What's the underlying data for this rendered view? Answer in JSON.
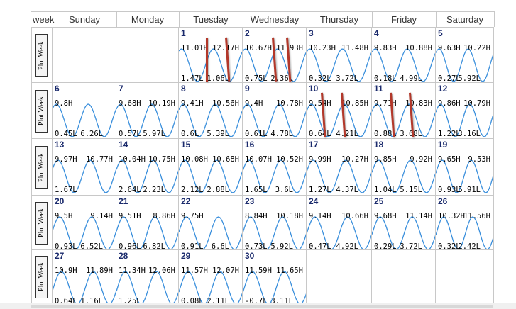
{
  "headers": [
    "week",
    "Sunday",
    "Monday",
    "Tuesday",
    "Wednesday",
    "Thursday",
    "Friday",
    "Saturday"
  ],
  "plot_week_label": "Plot Week",
  "colors": {
    "wave": "#3a8fdc",
    "grid": "#c8c8c8",
    "daynum": "#1a2a6c",
    "marker": "#b3382a"
  },
  "weeks": [
    {
      "days": [
        null,
        null,
        {
          "day": "1",
          "h1": "11.01H",
          "h2": "12.17H",
          "l1": "1.47L",
          "l2": "1.06L",
          "phase": 0.55
        },
        {
          "day": "2",
          "h1": "10.67H",
          "h2": "11.93H",
          "l1": "0.75L",
          "l2": "2.36L",
          "phase": 0.6
        },
        {
          "day": "3",
          "h1": "10.23H",
          "h2": "11.48H",
          "l1": "0.32L",
          "l2": "3.72L",
          "phase": 0.65
        },
        {
          "day": "4",
          "h1": "9.83H",
          "h2": "10.88H",
          "l1": "0.18L",
          "l2": "4.99L",
          "phase": 0.7
        },
        {
          "day": "5",
          "h1": "9.63H",
          "h2": "10.22H",
          "l1": "0.27L",
          "l2": "5.92L",
          "phase": 0.75
        }
      ]
    },
    {
      "days": [
        {
          "day": "6",
          "h1": "9.8H",
          "h2": "",
          "l1": "0.45L",
          "l2": "6.26L",
          "phase": 0.8
        },
        {
          "day": "7",
          "h1": "9.68H",
          "h2": "10.19H",
          "l1": "0.57L",
          "l2": "5.97L",
          "phase": 0.85
        },
        {
          "day": "8",
          "h1": "9.41H",
          "h2": "10.56H",
          "l1": "0.6L",
          "l2": "5.39L",
          "phase": 0.9
        },
        {
          "day": "9",
          "h1": "9.4H",
          "h2": "10.78H",
          "l1": "0.61L",
          "l2": "4.78L",
          "phase": 0.95
        },
        {
          "day": "10",
          "h1": "9.54H",
          "h2": "10.85H",
          "l1": "0.64L",
          "l2": "4.21L",
          "phase": 1.0
        },
        {
          "day": "11",
          "h1": "9.71H",
          "h2": "10.83H",
          "l1": "0.88L",
          "l2": "3.68L",
          "phase": 1.05
        },
        {
          "day": "12",
          "h1": "9.86H",
          "h2": "10.79H",
          "l1": "1.22L",
          "l2": "3.16L",
          "phase": 1.1
        }
      ]
    },
    {
      "days": [
        {
          "day": "13",
          "h1": "9.97H",
          "h2": "10.77H",
          "l1": "1.67L",
          "l2": "",
          "phase": 1.15
        },
        {
          "day": "14",
          "h1": "10.04H",
          "h2": "10.75H",
          "l1": "2.64L",
          "l2": "2.23L",
          "phase": 1.2
        },
        {
          "day": "15",
          "h1": "10.08H",
          "h2": "10.68H",
          "l1": "2.12L",
          "l2": "2.88L",
          "phase": 1.25
        },
        {
          "day": "16",
          "h1": "10.07H",
          "h2": "10.52H",
          "l1": "1.65L",
          "l2": "3.6L",
          "phase": 1.3
        },
        {
          "day": "17",
          "h1": "9.99H",
          "h2": "10.27H",
          "l1": "1.27L",
          "l2": "4.37L",
          "phase": 1.35
        },
        {
          "day": "18",
          "h1": "9.85H",
          "h2": "9.92H",
          "l1": "1.04L",
          "l2": "5.15L",
          "phase": 1.4
        },
        {
          "day": "19",
          "h1": "9.65H",
          "h2": "9.53H",
          "l1": "0.93L",
          "l2": "5.91L",
          "phase": 1.45
        }
      ]
    },
    {
      "days": [
        {
          "day": "20",
          "h1": "9.5H",
          "h2": "9.14H",
          "l1": "0.93L",
          "l2": "6.52L",
          "phase": 1.5
        },
        {
          "day": "21",
          "h1": "9.51H",
          "h2": "8.86H",
          "l1": "0.96L",
          "l2": "6.82L",
          "phase": 1.55
        },
        {
          "day": "22",
          "h1": "9.75H",
          "h2": "",
          "l1": "0.91L",
          "l2": "6.6L",
          "phase": 1.6
        },
        {
          "day": "23",
          "h1": "8.84H",
          "h2": "10.18H",
          "l1": "0.73L",
          "l2": "5.92L",
          "phase": 1.65
        },
        {
          "day": "24",
          "h1": "9.14H",
          "h2": "10.66H",
          "l1": "0.47L",
          "l2": "4.92L",
          "phase": 1.7
        },
        {
          "day": "25",
          "h1": "9.68H",
          "h2": "11.14H",
          "l1": "0.29L",
          "l2": "3.72L",
          "phase": 1.75
        },
        {
          "day": "26",
          "h1": "10.32H",
          "h2": "11.56H",
          "l1": "0.32L",
          "l2": "2.42L",
          "phase": 1.8
        }
      ]
    },
    {
      "days": [
        {
          "day": "27",
          "h1": "10.9H",
          "h2": "11.89H",
          "l1": "0.64L",
          "l2": "1.16L",
          "phase": 1.85
        },
        {
          "day": "28",
          "h1": "11.34H",
          "h2": "12.06H",
          "l1": "1.25L",
          "l2": "",
          "phase": 1.9
        },
        {
          "day": "29",
          "h1": "11.57H",
          "h2": "12.07H",
          "l1": "0.08L",
          "l2": "2.11L",
          "phase": 1.95
        },
        {
          "day": "30",
          "h1": "11.59H",
          "h2": "11.65H",
          "l1": "-0.7L",
          "l2": "3.11L",
          "phase": 2.0
        },
        null,
        null,
        null
      ]
    }
  ],
  "markers": [
    {
      "week": 0,
      "dayIndex": 2,
      "positions": [
        0.42,
        0.72
      ],
      "angle": [
        0,
        -4
      ]
    },
    {
      "week": 0,
      "dayIndex": 3,
      "positions": [
        0.45,
        0.68
      ],
      "angle": [
        -4,
        -4
      ]
    },
    {
      "week": 1,
      "dayIndex": 4,
      "positions": [
        0.22,
        0.52
      ],
      "angle": [
        -4,
        -4
      ]
    },
    {
      "week": 1,
      "dayIndex": 5,
      "positions": [
        0.28,
        0.58
      ],
      "angle": [
        -4,
        -4
      ]
    }
  ]
}
